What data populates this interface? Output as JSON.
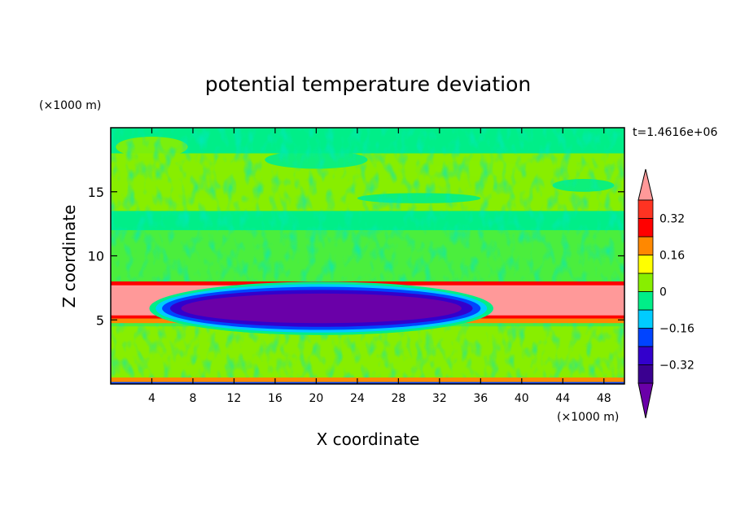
{
  "chart_data": {
    "type": "heatmap",
    "title": "potential temperature deviation",
    "time_label": "t=1.4616e+06",
    "xlabel": "X coordinate",
    "ylabel": "Z coordinate",
    "x_unit": "(×1000 m)",
    "y_unit": "(×1000 m)",
    "xlim": [
      0,
      50
    ],
    "ylim": [
      0,
      20
    ],
    "x_ticks": [
      4,
      8,
      12,
      16,
      20,
      24,
      28,
      32,
      36,
      40,
      44,
      48
    ],
    "y_ticks": [
      5,
      10,
      15
    ],
    "colorbar": {
      "levels": [
        -0.4,
        -0.32,
        -0.24,
        -0.16,
        -0.08,
        0,
        0.08,
        0.16,
        0.24,
        0.32,
        0.4
      ],
      "labels": [
        "0.32",
        "0.16",
        "0",
        "−0.16",
        "−0.32"
      ],
      "label_values": [
        0.32,
        0.16,
        0,
        -0.16,
        -0.32
      ],
      "colors": [
        "#6a00a8",
        "#3300cc",
        "#0044ff",
        "#00ccff",
        "#00ee88",
        "#88ee00",
        "#ffff00",
        "#ff8800",
        "#ff0000",
        "#ff3322",
        "#ff9999"
      ],
      "extend": "both"
    },
    "fields": {
      "lower_z": 4.5,
      "warm_layer_z": [
        5.1,
        8.0
      ],
      "cold_pool_x": [
        5,
        36
      ],
      "cold_pool_z": [
        4.3,
        7.5
      ],
      "cold_pool_min": -0.4,
      "upper_green_z": 13.5
    },
    "grid": false
  }
}
